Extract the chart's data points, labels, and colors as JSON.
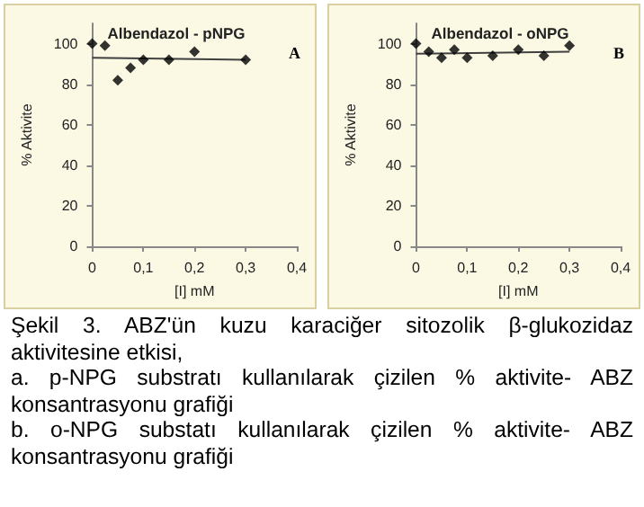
{
  "chart_data": [
    {
      "type": "scatter",
      "title": "Albendazol - pNPG",
      "xlabel": "[I] mM",
      "ylabel": "% Aktivite",
      "annotations": [
        "A",
        "Şekil 3. ABZ'ün kuzu karaciğer sitozolik β-glukozidaz aktivitesine etkisi,",
        "a. p-NPG substratı kullanılarak çizilen % aktivite- ABZ konsantrasyonu grafiği",
        "b. o-NPG substatı kullanılarak çizilen % aktivite- ABZ konsantrasyonu grafiği"
      ],
      "xlim": [
        0,
        0.4
      ],
      "xticks": [
        0,
        {
          "value": 0.1,
          "label": "0,1"
        },
        {
          "value": 0.2,
          "label": "0,2"
        },
        {
          "value": 0.3,
          "label": "0,3"
        },
        {
          "value": 0.4,
          "label": "0,4"
        }
      ],
      "ylim": [
        0,
        110
      ],
      "yticks": [
        0,
        20,
        40,
        60,
        80,
        100
      ],
      "grid": false,
      "series": [
        {
          "marker": "diamond",
          "color": "#000000",
          "x": [
            0,
            0.025,
            0.05,
            0.075,
            0.1,
            0.15,
            0.2,
            0.3
          ],
          "values": [
            100,
            99,
            82,
            88,
            92,
            92,
            96,
            92
          ]
        },
        {
          "type": "line",
          "marker": "none",
          "line_style": "solid",
          "color": "#404040",
          "x": [
            0,
            0.3
          ],
          "values": [
            93,
            92
          ]
        }
      ]
    },
    {
      "type": "scatter",
      "title": "Albendazol - oNPG",
      "xlabel": "[I] mM",
      "ylabel": "% Aktivite",
      "annotations": [
        "B"
      ],
      "xlim": [
        0,
        0.4
      ],
      "xticks": [
        0,
        {
          "value": 0.1,
          "label": "0,1"
        },
        {
          "value": 0.2,
          "label": "0,2"
        },
        {
          "value": 0.3,
          "label": "0,3"
        },
        {
          "value": 0.4,
          "label": "0,4"
        }
      ],
      "ylim": [
        0,
        110
      ],
      "yticks": [
        0,
        20,
        40,
        60,
        80,
        100
      ],
      "grid": false,
      "series": [
        {
          "marker": "diamond",
          "color": "#000000",
          "x": [
            0,
            0.025,
            0.05,
            0.075,
            0.1,
            0.15,
            0.2,
            0.25,
            0.3
          ],
          "values": [
            100,
            96,
            93,
            97,
            93,
            94,
            97,
            94,
            99
          ]
        },
        {
          "type": "line",
          "marker": "none",
          "line_style": "solid",
          "color": "#404040",
          "x": [
            0,
            0.3
          ],
          "values": [
            95,
            96
          ]
        }
      ]
    }
  ]
}
